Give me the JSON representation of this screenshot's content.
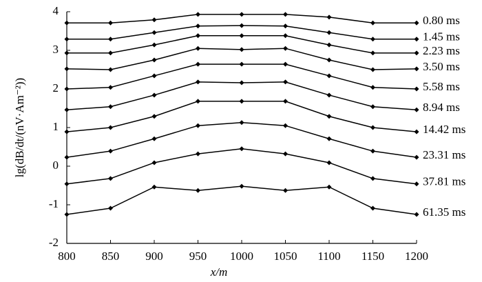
{
  "chart_data": {
    "type": "line",
    "x_label": "x/m",
    "y_label": "lg(dB/dt/(nV·Am⁻²))",
    "x": [
      800,
      850,
      900,
      950,
      1000,
      1050,
      1100,
      1150,
      1200
    ],
    "xlim": [
      800,
      1200
    ],
    "xticks": [
      800,
      850,
      900,
      950,
      1000,
      1050,
      1100,
      1150,
      1200
    ],
    "ylim": [
      -2,
      4
    ],
    "yticks": [
      -2,
      -1,
      0,
      1,
      2,
      3,
      4
    ],
    "marker": "diamond",
    "series": [
      {
        "name": "0.80 ms",
        "color": "#000000",
        "values": [
          3.71,
          3.71,
          3.79,
          3.93,
          3.93,
          3.93,
          3.86,
          3.71,
          3.71
        ]
      },
      {
        "name": "1.45 ms",
        "color": "#000000",
        "values": [
          3.29,
          3.29,
          3.46,
          3.63,
          3.64,
          3.63,
          3.46,
          3.29,
          3.29
        ]
      },
      {
        "name": "2.23 ms",
        "color": "#000000",
        "values": [
          2.93,
          2.93,
          3.14,
          3.38,
          3.38,
          3.38,
          3.14,
          2.93,
          2.93
        ]
      },
      {
        "name": "3.50 ms",
        "color": "#000000",
        "values": [
          2.52,
          2.5,
          2.75,
          3.05,
          3.02,
          3.05,
          2.75,
          2.5,
          2.52
        ]
      },
      {
        "name": "5.58 ms",
        "color": "#000000",
        "values": [
          2.0,
          2.04,
          2.34,
          2.64,
          2.64,
          2.64,
          2.34,
          2.04,
          2.0
        ]
      },
      {
        "name": "8.94 ms",
        "color": "#000000",
        "values": [
          1.46,
          1.54,
          1.84,
          2.18,
          2.16,
          2.18,
          1.84,
          1.54,
          1.46
        ]
      },
      {
        "name": "14.42 ms",
        "color": "#000000",
        "values": [
          0.89,
          1.0,
          1.29,
          1.68,
          1.68,
          1.68,
          1.29,
          1.0,
          0.89
        ]
      },
      {
        "name": "23.31 ms",
        "color": "#000000",
        "values": [
          0.23,
          0.39,
          0.71,
          1.05,
          1.13,
          1.05,
          0.71,
          0.39,
          0.23
        ]
      },
      {
        "name": "37.81 ms",
        "color": "#000000",
        "values": [
          -0.46,
          -0.32,
          0.09,
          0.32,
          0.45,
          0.32,
          0.09,
          -0.32,
          -0.46
        ]
      },
      {
        "name": "61.35 ms",
        "color": "#000000",
        "values": [
          -1.25,
          -1.09,
          -0.54,
          -0.63,
          -0.52,
          -0.63,
          -0.54,
          -1.09,
          -1.25
        ]
      }
    ]
  }
}
